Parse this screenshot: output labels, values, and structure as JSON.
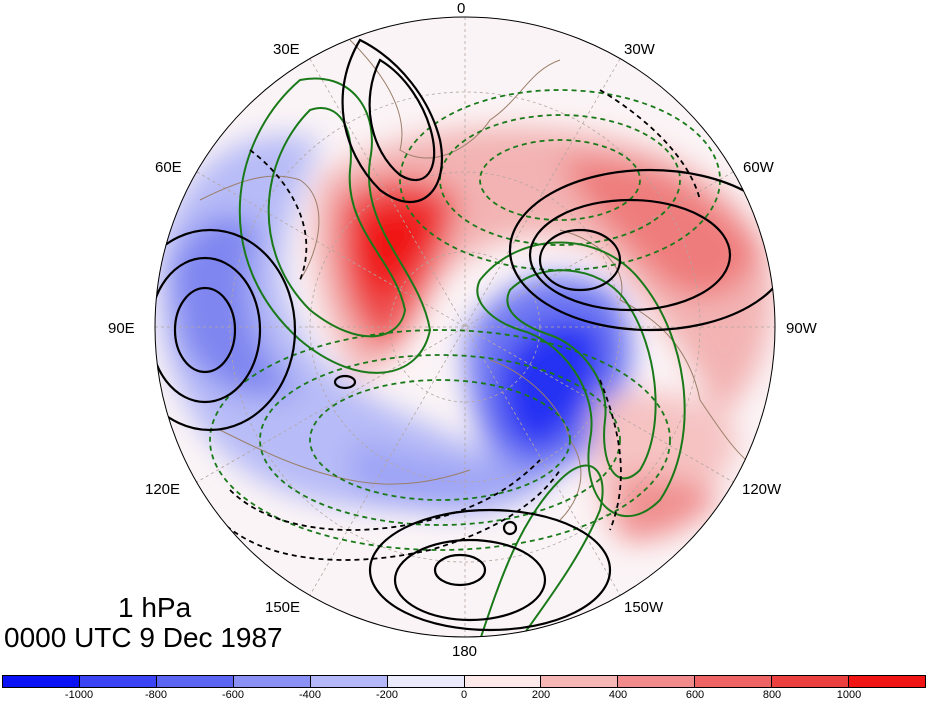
{
  "overlay": {
    "level": "1 hPa",
    "time": "0000 UTC 9 Dec 1987"
  },
  "longitude_labels": [
    "0",
    "30W",
    "60W",
    "90W",
    "120W",
    "150W",
    "180",
    "150E",
    "120E",
    "90E",
    "60E",
    "30E"
  ],
  "colorbar": {
    "colors": [
      "#0a12f5",
      "#3a44f4",
      "#5c64f2",
      "#8a90f4",
      "#b4b8f8",
      "#e9eafc",
      "#fde9e9",
      "#f6b6b6",
      "#f18a8a",
      "#ee6464",
      "#ec4040",
      "#f01414"
    ],
    "tick_labels": [
      "-1000",
      "-800",
      "-600",
      "-400",
      "-200",
      "0",
      "200",
      "400",
      "600",
      "800",
      "1000"
    ]
  },
  "contour_colors": {
    "height": "#000000",
    "secondary": "#1a7a1a",
    "coastline": "#9b7f6a"
  }
}
